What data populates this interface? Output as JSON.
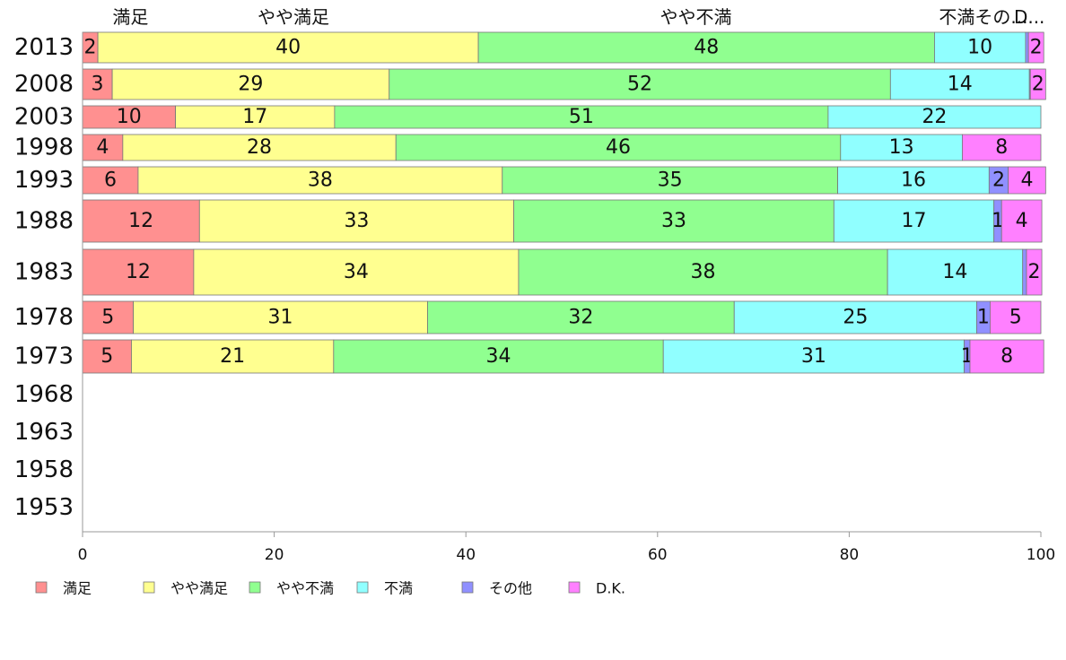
{
  "chart_data": {
    "type": "bar",
    "orientation": "horizontal",
    "stacked": true,
    "xlim": [
      0,
      100
    ],
    "xticks": [
      "0",
      "20",
      "40",
      "60",
      "80",
      "100"
    ],
    "legend_position": "bottom",
    "grid": false,
    "top_labels": [
      {
        "text": "満足",
        "at": 5
      },
      {
        "text": "やや満足",
        "at": 22
      },
      {
        "text": "やや不満",
        "at": 64
      },
      {
        "text": "不満その...",
        "at": 94
      },
      {
        "text": "D...",
        "at": 98.8
      }
    ],
    "series": [
      {
        "name": "満足",
        "color": "#ff9090"
      },
      {
        "name": "やや満足",
        "color": "#ffff90"
      },
      {
        "name": "やや不満",
        "color": "#90ff90"
      },
      {
        "name": "不満",
        "color": "#90ffff"
      },
      {
        "name": "その他",
        "color": "#9090ff"
      },
      {
        "name": "D.K.",
        "color": "#ff80ff"
      }
    ],
    "rows": [
      {
        "year": "2013",
        "values": [
          1.6,
          39.7,
          47.6,
          9.5,
          0.3,
          1.6
        ],
        "labels": [
          "2",
          "40",
          "48",
          "10",
          "",
          "2"
        ]
      },
      {
        "year": "2008",
        "values": [
          3.1,
          28.9,
          52.3,
          14.5,
          0.1,
          1.6
        ],
        "labels": [
          "3",
          "29",
          "52",
          "14",
          "",
          "2"
        ]
      },
      {
        "year": "2003",
        "values": [
          9.7,
          16.6,
          51.5,
          22.2,
          0,
          0
        ],
        "labels": [
          "10",
          "17",
          "51",
          "22",
          "",
          ""
        ]
      },
      {
        "year": "1998",
        "values": [
          4.2,
          28.5,
          46.4,
          12.7,
          0,
          8.2
        ],
        "labels": [
          "4",
          "28",
          "46",
          "13",
          "",
          "8"
        ]
      },
      {
        "year": "1993",
        "values": [
          5.8,
          38.0,
          35.0,
          15.8,
          2.0,
          3.9
        ],
        "labels": [
          "6",
          "38",
          "35",
          "16",
          "2",
          "4"
        ]
      },
      {
        "year": "1988",
        "values": [
          12.2,
          32.8,
          33.4,
          16.7,
          0.8,
          4.2
        ],
        "labels": [
          "12",
          "33",
          "33",
          "17",
          "1",
          "4"
        ]
      },
      {
        "year": "1983",
        "values": [
          11.6,
          33.9,
          38.5,
          14.1,
          0.4,
          1.6
        ],
        "labels": [
          "12",
          "34",
          "38",
          "14",
          "",
          "2"
        ]
      },
      {
        "year": "1978",
        "values": [
          5.3,
          30.7,
          32.0,
          25.3,
          1.4,
          5.3
        ],
        "labels": [
          "5",
          "31",
          "32",
          "25",
          "1",
          "5"
        ]
      },
      {
        "year": "1973",
        "values": [
          5.1,
          21.1,
          34.4,
          31.4,
          0.6,
          7.7
        ],
        "labels": [
          "5",
          "21",
          "34",
          "31",
          "1",
          "8"
        ]
      },
      {
        "year": "1968",
        "values": [],
        "labels": []
      },
      {
        "year": "1963",
        "values": [],
        "labels": []
      },
      {
        "year": "1958",
        "values": [],
        "labels": []
      },
      {
        "year": "1953",
        "values": [],
        "labels": []
      }
    ]
  }
}
